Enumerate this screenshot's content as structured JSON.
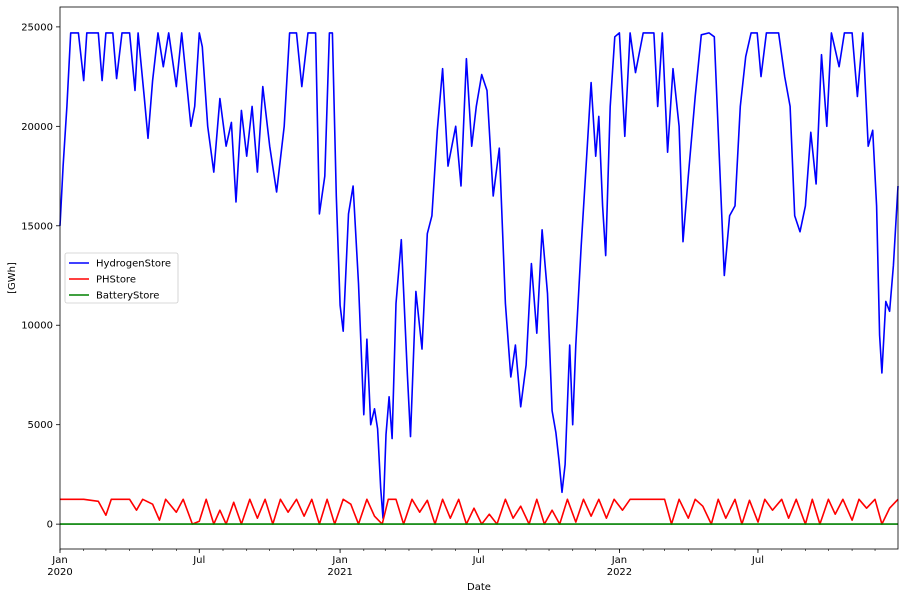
{
  "chart_data": {
    "type": "line",
    "xlabel": "Date",
    "ylabel": "[GWh]",
    "x_range": [
      "2020-01-01",
      "2022-12-31"
    ],
    "ylim": [
      -1250,
      26000
    ],
    "y_ticks": [
      0,
      5000,
      10000,
      15000,
      20000,
      25000
    ],
    "x_ticks": [
      {
        "date": "2020-01-01",
        "label": "Jan",
        "sublabel": "2020"
      },
      {
        "date": "2020-07-01",
        "label": "Jul",
        "sublabel": ""
      },
      {
        "date": "2021-01-01",
        "label": "Jan",
        "sublabel": "2021"
      },
      {
        "date": "2021-07-01",
        "label": "Jul",
        "sublabel": ""
      },
      {
        "date": "2022-01-01",
        "label": "Jan",
        "sublabel": "2022"
      },
      {
        "date": "2022-07-01",
        "label": "Jul",
        "sublabel": ""
      }
    ],
    "grid": false,
    "legend_position": "center-left",
    "series": [
      {
        "name": "HydrogenStore",
        "color": "#0000ff",
        "points": [
          [
            "2020-01-01",
            15000
          ],
          [
            "2020-01-05",
            18000
          ],
          [
            "2020-01-10",
            21000
          ],
          [
            "2020-01-15",
            24700
          ],
          [
            "2020-01-25",
            24700
          ],
          [
            "2020-02-01",
            22300
          ],
          [
            "2020-02-05",
            24700
          ],
          [
            "2020-02-20",
            24700
          ],
          [
            "2020-02-25",
            22300
          ],
          [
            "2020-03-01",
            24700
          ],
          [
            "2020-03-10",
            24700
          ],
          [
            "2020-03-15",
            22400
          ],
          [
            "2020-03-22",
            24700
          ],
          [
            "2020-04-01",
            24700
          ],
          [
            "2020-04-08",
            21800
          ],
          [
            "2020-04-12",
            24700
          ],
          [
            "2020-04-20",
            21500
          ],
          [
            "2020-04-25",
            19400
          ],
          [
            "2020-05-01",
            22300
          ],
          [
            "2020-05-08",
            24700
          ],
          [
            "2020-05-15",
            23000
          ],
          [
            "2020-05-22",
            24700
          ],
          [
            "2020-06-01",
            22000
          ],
          [
            "2020-06-08",
            24700
          ],
          [
            "2020-06-15",
            22000
          ],
          [
            "2020-06-20",
            20000
          ],
          [
            "2020-06-25",
            21000
          ],
          [
            "2020-07-01",
            24700
          ],
          [
            "2020-07-05",
            24000
          ],
          [
            "2020-07-12",
            20000
          ],
          [
            "2020-07-20",
            17700
          ],
          [
            "2020-07-28",
            21400
          ],
          [
            "2020-08-05",
            19000
          ],
          [
            "2020-08-12",
            20200
          ],
          [
            "2020-08-18",
            16200
          ],
          [
            "2020-08-25",
            20800
          ],
          [
            "2020-09-01",
            18500
          ],
          [
            "2020-09-08",
            21000
          ],
          [
            "2020-09-15",
            17700
          ],
          [
            "2020-09-22",
            22000
          ],
          [
            "2020-10-01",
            19000
          ],
          [
            "2020-10-10",
            16700
          ],
          [
            "2020-10-20",
            20000
          ],
          [
            "2020-10-27",
            24700
          ],
          [
            "2020-11-05",
            24700
          ],
          [
            "2020-11-12",
            22000
          ],
          [
            "2020-11-20",
            24700
          ],
          [
            "2020-11-30",
            24700
          ],
          [
            "2020-12-05",
            15600
          ],
          [
            "2020-12-12",
            17500
          ],
          [
            "2020-12-18",
            24700
          ],
          [
            "2020-12-22",
            24700
          ],
          [
            "2020-12-27",
            16500
          ],
          [
            "2021-01-01",
            11000
          ],
          [
            "2021-01-05",
            9700
          ],
          [
            "2021-01-12",
            15600
          ],
          [
            "2021-01-18",
            17000
          ],
          [
            "2021-01-25",
            12100
          ],
          [
            "2021-02-01",
            5500
          ],
          [
            "2021-02-05",
            9300
          ],
          [
            "2021-02-10",
            5000
          ],
          [
            "2021-02-15",
            5800
          ],
          [
            "2021-02-19",
            4800
          ],
          [
            "2021-02-23",
            1800
          ],
          [
            "2021-02-26",
            300
          ],
          [
            "2021-03-02",
            4500
          ],
          [
            "2021-03-06",
            6400
          ],
          [
            "2021-03-10",
            4300
          ],
          [
            "2021-03-15",
            11100
          ],
          [
            "2021-03-22",
            14300
          ],
          [
            "2021-03-30",
            7500
          ],
          [
            "2021-04-03",
            4400
          ],
          [
            "2021-04-10",
            11700
          ],
          [
            "2021-04-18",
            8800
          ],
          [
            "2021-04-25",
            14600
          ],
          [
            "2021-05-01",
            15500
          ],
          [
            "2021-05-08",
            19800
          ],
          [
            "2021-05-15",
            22900
          ],
          [
            "2021-05-22",
            18000
          ],
          [
            "2021-06-01",
            20000
          ],
          [
            "2021-06-08",
            17000
          ],
          [
            "2021-06-15",
            23400
          ],
          [
            "2021-06-22",
            19000
          ],
          [
            "2021-06-28",
            21000
          ],
          [
            "2021-07-05",
            22600
          ],
          [
            "2021-07-12",
            21800
          ],
          [
            "2021-07-20",
            16500
          ],
          [
            "2021-07-28",
            18900
          ],
          [
            "2021-08-05",
            11100
          ],
          [
            "2021-08-12",
            7400
          ],
          [
            "2021-08-18",
            9000
          ],
          [
            "2021-08-25",
            5900
          ],
          [
            "2021-09-01",
            8000
          ],
          [
            "2021-09-08",
            13100
          ],
          [
            "2021-09-15",
            9600
          ],
          [
            "2021-09-22",
            14800
          ],
          [
            "2021-09-29",
            11600
          ],
          [
            "2021-10-05",
            5700
          ],
          [
            "2021-10-10",
            4600
          ],
          [
            "2021-10-14",
            3200
          ],
          [
            "2021-10-18",
            1600
          ],
          [
            "2021-10-22",
            3000
          ],
          [
            "2021-10-28",
            9000
          ],
          [
            "2021-11-01",
            5000
          ],
          [
            "2021-11-05",
            9000
          ],
          [
            "2021-11-12",
            14000
          ],
          [
            "2021-11-20",
            19000
          ],
          [
            "2021-11-25",
            22200
          ],
          [
            "2021-12-01",
            18500
          ],
          [
            "2021-12-05",
            20500
          ],
          [
            "2021-12-10",
            16000
          ],
          [
            "2021-12-14",
            13500
          ],
          [
            "2021-12-20",
            21000
          ],
          [
            "2021-12-26",
            24500
          ],
          [
            "2022-01-01",
            24700
          ],
          [
            "2022-01-08",
            19500
          ],
          [
            "2022-01-15",
            24700
          ],
          [
            "2022-01-22",
            22700
          ],
          [
            "2022-02-01",
            24700
          ],
          [
            "2022-02-15",
            24700
          ],
          [
            "2022-02-20",
            21000
          ],
          [
            "2022-02-26",
            24700
          ],
          [
            "2022-03-05",
            18700
          ],
          [
            "2022-03-12",
            22900
          ],
          [
            "2022-03-20",
            20000
          ],
          [
            "2022-03-25",
            14200
          ],
          [
            "2022-04-01",
            17500
          ],
          [
            "2022-04-10",
            21500
          ],
          [
            "2022-04-18",
            24600
          ],
          [
            "2022-04-28",
            24700
          ],
          [
            "2022-05-05",
            24500
          ],
          [
            "2022-05-12",
            18000
          ],
          [
            "2022-05-18",
            12500
          ],
          [
            "2022-05-25",
            15500
          ],
          [
            "2022-06-01",
            16000
          ],
          [
            "2022-06-08",
            21000
          ],
          [
            "2022-06-15",
            23500
          ],
          [
            "2022-06-22",
            24700
          ],
          [
            "2022-06-30",
            24700
          ],
          [
            "2022-07-05",
            22500
          ],
          [
            "2022-07-12",
            24700
          ],
          [
            "2022-07-20",
            24700
          ],
          [
            "2022-07-28",
            24700
          ],
          [
            "2022-08-05",
            22500
          ],
          [
            "2022-08-12",
            21000
          ],
          [
            "2022-08-18",
            15500
          ],
          [
            "2022-08-25",
            14700
          ],
          [
            "2022-09-01",
            16000
          ],
          [
            "2022-09-08",
            19700
          ],
          [
            "2022-09-15",
            17100
          ],
          [
            "2022-09-22",
            23600
          ],
          [
            "2022-09-29",
            20000
          ],
          [
            "2022-10-05",
            24700
          ],
          [
            "2022-10-15",
            23000
          ],
          [
            "2022-10-22",
            24700
          ],
          [
            "2022-11-01",
            24700
          ],
          [
            "2022-11-08",
            21500
          ],
          [
            "2022-11-15",
            24700
          ],
          [
            "2022-11-22",
            19000
          ],
          [
            "2022-11-28",
            19800
          ],
          [
            "2022-12-03",
            16000
          ],
          [
            "2022-12-07",
            9500
          ],
          [
            "2022-12-10",
            7600
          ],
          [
            "2022-12-15",
            11200
          ],
          [
            "2022-12-20",
            10700
          ],
          [
            "2022-12-25",
            13000
          ],
          [
            "2022-12-31",
            17000
          ]
        ]
      },
      {
        "name": "PHStore",
        "color": "#ff0000",
        "points": [
          [
            "2020-01-01",
            1250
          ],
          [
            "2020-02-01",
            1250
          ],
          [
            "2020-02-20",
            1150
          ],
          [
            "2020-03-01",
            450
          ],
          [
            "2020-03-08",
            1250
          ],
          [
            "2020-04-01",
            1250
          ],
          [
            "2020-04-10",
            700
          ],
          [
            "2020-04-18",
            1250
          ],
          [
            "2020-05-01",
            1000
          ],
          [
            "2020-05-10",
            200
          ],
          [
            "2020-05-18",
            1250
          ],
          [
            "2020-06-01",
            600
          ],
          [
            "2020-06-10",
            1250
          ],
          [
            "2020-06-22",
            0
          ],
          [
            "2020-07-01",
            150
          ],
          [
            "2020-07-10",
            1250
          ],
          [
            "2020-07-20",
            0
          ],
          [
            "2020-07-28",
            700
          ],
          [
            "2020-08-05",
            0
          ],
          [
            "2020-08-15",
            1100
          ],
          [
            "2020-08-25",
            0
          ],
          [
            "2020-09-05",
            1250
          ],
          [
            "2020-09-15",
            300
          ],
          [
            "2020-09-25",
            1250
          ],
          [
            "2020-10-05",
            0
          ],
          [
            "2020-10-15",
            1250
          ],
          [
            "2020-10-25",
            600
          ],
          [
            "2020-11-05",
            1250
          ],
          [
            "2020-11-15",
            400
          ],
          [
            "2020-11-25",
            1250
          ],
          [
            "2020-12-05",
            0
          ],
          [
            "2020-12-15",
            1250
          ],
          [
            "2020-12-25",
            0
          ],
          [
            "2021-01-05",
            1250
          ],
          [
            "2021-01-15",
            1000
          ],
          [
            "2021-01-25",
            0
          ],
          [
            "2021-02-05",
            1250
          ],
          [
            "2021-02-15",
            400
          ],
          [
            "2021-02-25",
            0
          ],
          [
            "2021-03-05",
            1250
          ],
          [
            "2021-03-15",
            1250
          ],
          [
            "2021-03-25",
            0
          ],
          [
            "2021-04-05",
            1250
          ],
          [
            "2021-04-15",
            600
          ],
          [
            "2021-04-25",
            1200
          ],
          [
            "2021-05-05",
            0
          ],
          [
            "2021-05-15",
            1250
          ],
          [
            "2021-05-25",
            300
          ],
          [
            "2021-06-05",
            1250
          ],
          [
            "2021-06-15",
            0
          ],
          [
            "2021-06-25",
            800
          ],
          [
            "2021-07-05",
            0
          ],
          [
            "2021-07-15",
            500
          ],
          [
            "2021-07-25",
            0
          ],
          [
            "2021-08-05",
            1250
          ],
          [
            "2021-08-15",
            300
          ],
          [
            "2021-08-25",
            900
          ],
          [
            "2021-09-05",
            0
          ],
          [
            "2021-09-15",
            1250
          ],
          [
            "2021-09-25",
            0
          ],
          [
            "2021-10-05",
            700
          ],
          [
            "2021-10-15",
            0
          ],
          [
            "2021-10-25",
            1250
          ],
          [
            "2021-11-05",
            100
          ],
          [
            "2021-11-15",
            1250
          ],
          [
            "2021-11-25",
            400
          ],
          [
            "2021-12-05",
            1250
          ],
          [
            "2021-12-15",
            300
          ],
          [
            "2021-12-25",
            1250
          ],
          [
            "2022-01-05",
            700
          ],
          [
            "2022-01-15",
            1250
          ],
          [
            "2022-02-15",
            1250
          ],
          [
            "2022-03-01",
            1250
          ],
          [
            "2022-03-10",
            0
          ],
          [
            "2022-03-20",
            1250
          ],
          [
            "2022-04-01",
            300
          ],
          [
            "2022-04-10",
            1250
          ],
          [
            "2022-04-20",
            900
          ],
          [
            "2022-05-01",
            0
          ],
          [
            "2022-05-10",
            1250
          ],
          [
            "2022-05-20",
            300
          ],
          [
            "2022-06-01",
            1250
          ],
          [
            "2022-06-10",
            0
          ],
          [
            "2022-06-20",
            1200
          ],
          [
            "2022-07-01",
            100
          ],
          [
            "2022-07-10",
            1250
          ],
          [
            "2022-07-20",
            700
          ],
          [
            "2022-08-01",
            1250
          ],
          [
            "2022-08-10",
            300
          ],
          [
            "2022-08-20",
            1250
          ],
          [
            "2022-09-01",
            0
          ],
          [
            "2022-09-10",
            1250
          ],
          [
            "2022-09-20",
            0
          ],
          [
            "2022-10-01",
            1250
          ],
          [
            "2022-10-10",
            500
          ],
          [
            "2022-10-20",
            1250
          ],
          [
            "2022-11-01",
            200
          ],
          [
            "2022-11-10",
            1250
          ],
          [
            "2022-11-20",
            800
          ],
          [
            "2022-12-01",
            1250
          ],
          [
            "2022-12-10",
            0
          ],
          [
            "2022-12-20",
            800
          ],
          [
            "2022-12-31",
            1250
          ]
        ]
      },
      {
        "name": "BatteryStore",
        "color": "#008000",
        "points": [
          [
            "2020-01-01",
            0
          ],
          [
            "2022-12-31",
            0
          ]
        ]
      }
    ]
  }
}
